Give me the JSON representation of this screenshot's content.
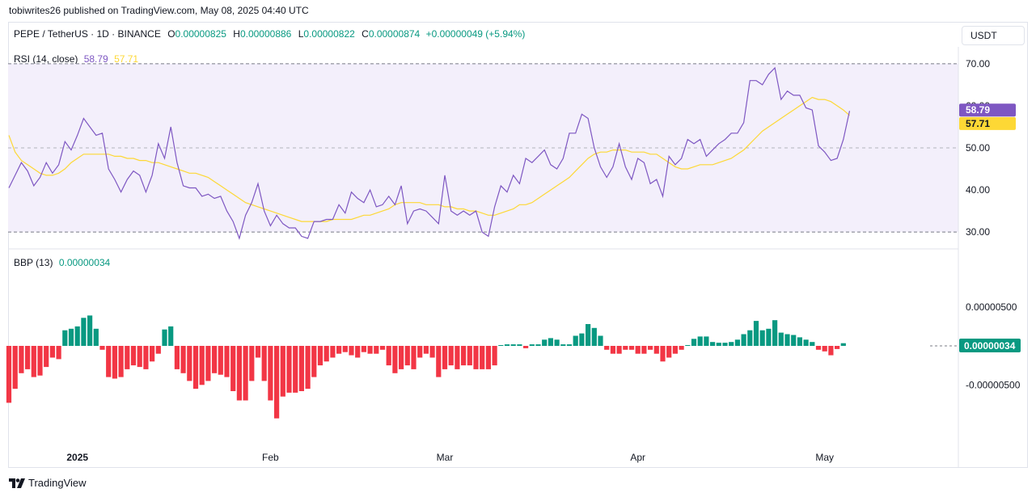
{
  "publisher": "tobiwrites26 published on TradingView.com, May 08, 2025 04:40 UTC",
  "symbol": {
    "name": "PEPE / TetherUS · 1D · BINANCE",
    "open_label": "O",
    "open": "0.00000825",
    "high_label": "H",
    "high": "0.00000886",
    "low_label": "L",
    "low": "0.00000822",
    "close_label": "C",
    "close": "0.00000874",
    "change": "+0.00000049 (+5.94%)"
  },
  "currency": "USDT",
  "footer": {
    "brand": "TradingView",
    "logo_icon": "tradingview-logo-icon"
  },
  "colors": {
    "rsi": "#7e57c2",
    "rsi_ma": "#fdd835",
    "bbp_pos": "#089981",
    "bbp_neg": "#f23645",
    "rsi_band": "#f3effb"
  },
  "chart_data": [
    {
      "type": "line",
      "indicator": "RSI (14, close)",
      "current_rsi": "58.79",
      "current_ma": "57.71",
      "ylim": [
        26,
        74
      ],
      "band": [
        30,
        70
      ],
      "midline": 50,
      "y_ticks": [
        "30.00",
        "40.00",
        "50.00",
        "60.00",
        "70.00"
      ],
      "x_ticks": [
        {
          "label": "2025",
          "index": 11
        },
        {
          "label": "Feb",
          "index": 42
        },
        {
          "label": "Mar",
          "index": 70
        },
        {
          "label": "Apr",
          "index": 101
        },
        {
          "label": "May",
          "index": 131
        }
      ],
      "series": [
        {
          "key": "rsi",
          "values": [
            40.5,
            43.5,
            46.5,
            44.5,
            41,
            43,
            46.5,
            44,
            46,
            51.5,
            49.5,
            53,
            57,
            55,
            53,
            53.5,
            45,
            42.5,
            39.5,
            42.5,
            44.5,
            43.5,
            39.5,
            43.5,
            51,
            47.5,
            55,
            46.5,
            41,
            40.5,
            40.5,
            38.5,
            39,
            38,
            38.5,
            35,
            32.5,
            28.5,
            34,
            37,
            41.5,
            35,
            31.5,
            34,
            32,
            31,
            31,
            29,
            28.5,
            32.5,
            32.5,
            33,
            33,
            36.5,
            34.5,
            39.5,
            38,
            37,
            40,
            36,
            36.5,
            38.5,
            36.5,
            41,
            32,
            35,
            35.5,
            35,
            33.5,
            32,
            43.5,
            35,
            34,
            35,
            34,
            35,
            30,
            29,
            36,
            41,
            39.5,
            43.5,
            41.5,
            47.5,
            46.5,
            48,
            49.5,
            46,
            45,
            47.5,
            53.5,
            53.5,
            58,
            57,
            50,
            45.5,
            43,
            45.5,
            51,
            45.5,
            42.5,
            47.5,
            46.5,
            41.5,
            42.5,
            38.5,
            48,
            46,
            47.5,
            52,
            51,
            52,
            48,
            49.5,
            51,
            52,
            53.5,
            53.5,
            56,
            66,
            66,
            65,
            67.5,
            69,
            61.5,
            63.5,
            62.5,
            62.5,
            59.5,
            59,
            50.5,
            49,
            47,
            47.5,
            52,
            58.79
          ]
        },
        {
          "key": "ma",
          "values": [
            53,
            49,
            47,
            46,
            45,
            44,
            43.5,
            43.5,
            44,
            45,
            46.5,
            47.5,
            48.5,
            48.5,
            48.5,
            48.5,
            48.5,
            48,
            48,
            47.5,
            47.5,
            47,
            47,
            46.5,
            46.5,
            46,
            45.5,
            45,
            44.5,
            44,
            44,
            43.5,
            43,
            42,
            41,
            40,
            39,
            38,
            37,
            36.5,
            36,
            35.5,
            35,
            34.5,
            34,
            33.5,
            33,
            32.5,
            32.5,
            32.5,
            32.5,
            32.5,
            33,
            33,
            33,
            33,
            33.5,
            34,
            34,
            34.5,
            35,
            35.5,
            36.5,
            37,
            37,
            37,
            37,
            36.5,
            36.5,
            36.5,
            36,
            36,
            35.5,
            35.5,
            35,
            35,
            34.5,
            34,
            34,
            34.5,
            35,
            35.5,
            36.5,
            36.5,
            37,
            38,
            39,
            40,
            41,
            42,
            43,
            44.5,
            46,
            47.5,
            48.5,
            49,
            49,
            49.5,
            49.5,
            49.5,
            49,
            49,
            49,
            48.5,
            48.5,
            47.5,
            46.5,
            45.5,
            45,
            45,
            45.5,
            46,
            46,
            46,
            46.5,
            47,
            47.5,
            48.5,
            49.5,
            51,
            52.5,
            54,
            55,
            56,
            57,
            58,
            59,
            60,
            61,
            62,
            61.5,
            61.5,
            61,
            60,
            59,
            57.71
          ]
        }
      ]
    },
    {
      "type": "bar",
      "indicator": "BBP (13)",
      "current_value": "0.00000034",
      "y_ticks": [
        "0.00000500",
        "-0.00000500"
      ],
      "ylim": [
        -1.25e-05,
        8e-06
      ],
      "values_scale": "1e-8",
      "values": [
        -730,
        -550,
        -350,
        -300,
        -400,
        -380,
        -270,
        -150,
        -170,
        200,
        220,
        250,
        360,
        390,
        220,
        -50,
        -400,
        -420,
        -400,
        -300,
        -250,
        -270,
        -300,
        -200,
        -100,
        210,
        250,
        -300,
        -350,
        -450,
        -550,
        -500,
        -450,
        -350,
        -370,
        -400,
        -580,
        -700,
        -700,
        -450,
        -150,
        -450,
        -700,
        -930,
        -650,
        -600,
        -600,
        -580,
        -550,
        -400,
        -250,
        -200,
        -150,
        -100,
        -80,
        -120,
        -150,
        -80,
        -100,
        -100,
        -50,
        -250,
        -350,
        -300,
        -250,
        -300,
        -150,
        -100,
        -150,
        -400,
        -300,
        -250,
        -300,
        -250,
        -250,
        -300,
        -300,
        -300,
        -250,
        10,
        20,
        20,
        20,
        -30,
        20,
        20,
        80,
        100,
        80,
        20,
        20,
        130,
        160,
        280,
        230,
        130,
        -50,
        -100,
        -100,
        -50,
        -50,
        -100,
        -100,
        -50,
        -100,
        -200,
        -150,
        -100,
        -50,
        10,
        90,
        120,
        120,
        50,
        40,
        40,
        50,
        80,
        150,
        200,
        320,
        200,
        220,
        330,
        170,
        150,
        140,
        110,
        80,
        50,
        -50,
        -70,
        -120,
        -40,
        34
      ]
    }
  ]
}
